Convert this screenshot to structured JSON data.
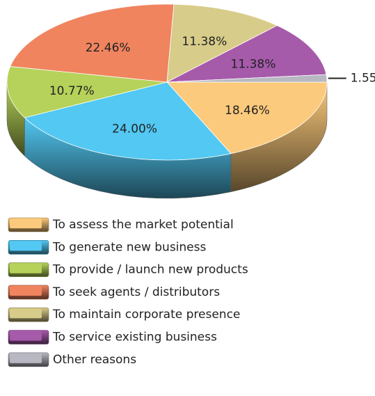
{
  "chart_data": {
    "type": "pie3d",
    "categories": [
      "To assess the market potential",
      "To generate new business",
      "To provide / launch new products",
      "To seek agents / distributors",
      "To maintain corporate presence",
      "To service existing business",
      "Other reasons"
    ],
    "values": [
      18.46,
      24.0,
      10.77,
      22.46,
      11.38,
      11.38,
      1.55
    ],
    "value_labels": [
      "18.46%",
      "24.00%",
      "10.77%",
      "22.46%",
      "11.38%",
      "11.38%",
      "1.55%"
    ],
    "colors": [
      "#fcca7c",
      "#52c8f2",
      "#b6d25a",
      "#f0845f",
      "#d8cc8a",
      "#a65aaa",
      "#b8b8c2"
    ]
  }
}
